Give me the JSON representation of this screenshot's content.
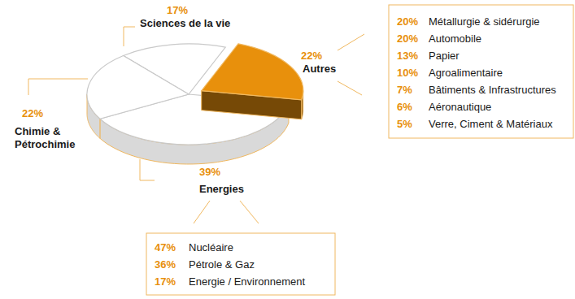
{
  "chart_data": [
    {
      "type": "pie",
      "categories": [
        "Sciences de la vie",
        "Autres",
        "Energies",
        "Chimie & Pétrochimie"
      ],
      "values": [
        17,
        22,
        39,
        22
      ],
      "value_labels": [
        "17%",
        "22%",
        "39%",
        "22%"
      ],
      "colors": [
        "#ffffff",
        "#e8900c",
        "#ffffff",
        "#ffffff"
      ],
      "data_labels": true
    },
    {
      "type": "list",
      "categories": [
        "Métallurgie & sidérurgie",
        "Automobile",
        "Papier",
        "Agroalimentaire",
        "Bâtiments & Infrastructures",
        "Aéronautique",
        "Verre, Ciment & Matériaux"
      ],
      "values": [
        20,
        20,
        13,
        10,
        7,
        6,
        5
      ],
      "value_labels": [
        "20%",
        "20%",
        "13%",
        "10%",
        "7%",
        "6%",
        "5%"
      ],
      "data_labels": true
    },
    {
      "type": "list",
      "categories": [
        "Nucléaire",
        "Pétrole & Gaz",
        "Energie / Environnement"
      ],
      "values": [
        47,
        36,
        17
      ],
      "value_labels": [
        "47%",
        "36%",
        "17%"
      ],
      "data_labels": true
    }
  ]
}
